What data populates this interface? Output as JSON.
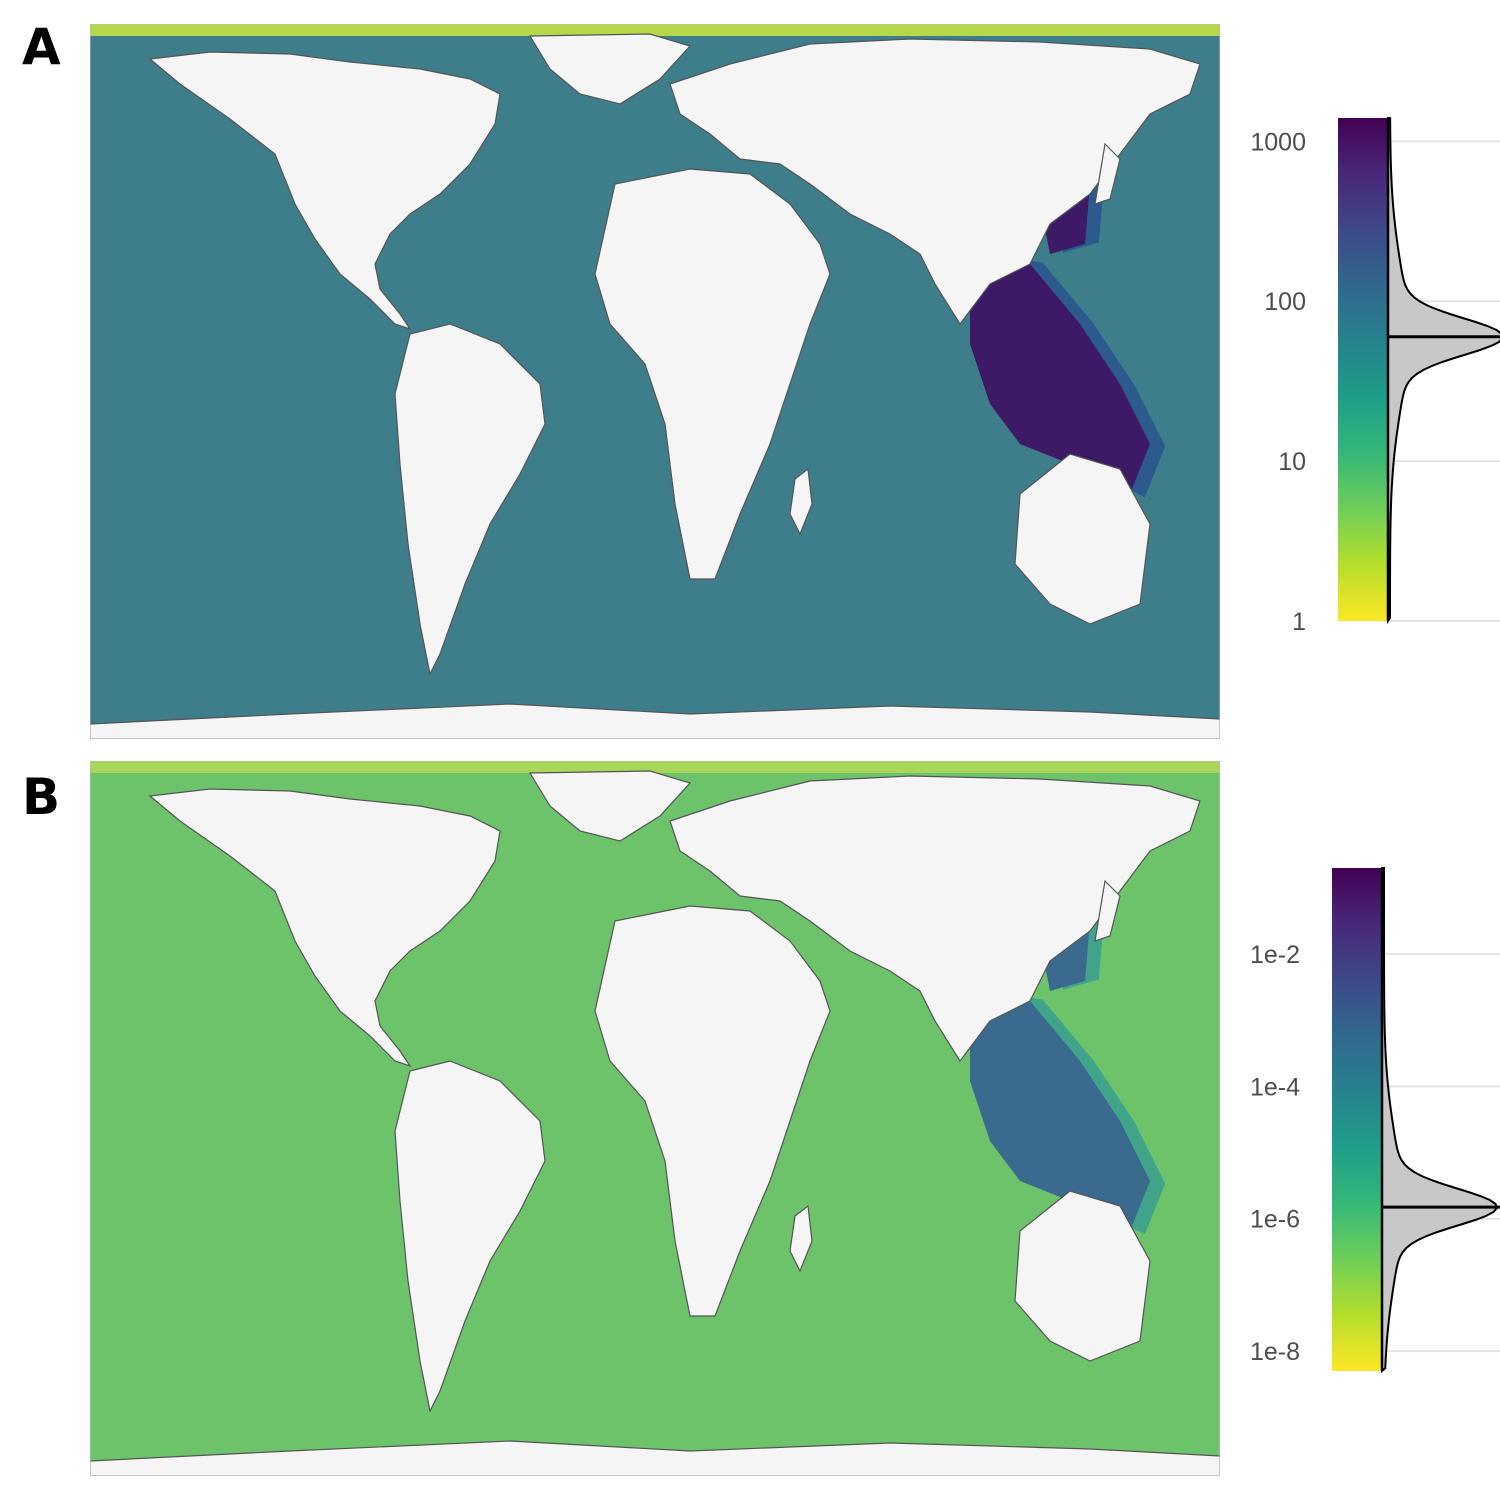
{
  "panels": [
    {
      "label": "A",
      "palette": {
        "ocean": "#3e7e8b",
        "shelf_deep": "#3d1a66",
        "shelf_mid": "#2c5a8c",
        "land": "#f5f5f5",
        "polar": "#b5d84a"
      },
      "legend": {
        "scale": "log10",
        "range": [
          1,
          1400
        ],
        "ticks": [
          "1000",
          "100",
          "10",
          "1"
        ],
        "tick_values": [
          1000,
          100,
          10,
          1
        ],
        "median_value": 60
      }
    },
    {
      "label": "B",
      "palette": {
        "ocean": "#6cc36a",
        "shelf_deep": "#3a6b8f",
        "shelf_mid": "#3fa48a",
        "land": "#f5f5f5",
        "polar": "#a7d65a"
      },
      "legend": {
        "scale": "log10",
        "range": [
          5e-09,
          0.2
        ],
        "ticks": [
          "1e-2",
          "1e-4",
          "1e-6",
          "1e-8"
        ],
        "tick_values": [
          0.01,
          0.0001,
          1e-06,
          1e-08
        ],
        "median_value": 1.5e-06
      }
    }
  ],
  "colorscale": [
    "#fde725",
    "#b5de2b",
    "#6ece58",
    "#35b779",
    "#1f9e89",
    "#26828e",
    "#31688e",
    "#3e4989",
    "#482878",
    "#440154"
  ]
}
